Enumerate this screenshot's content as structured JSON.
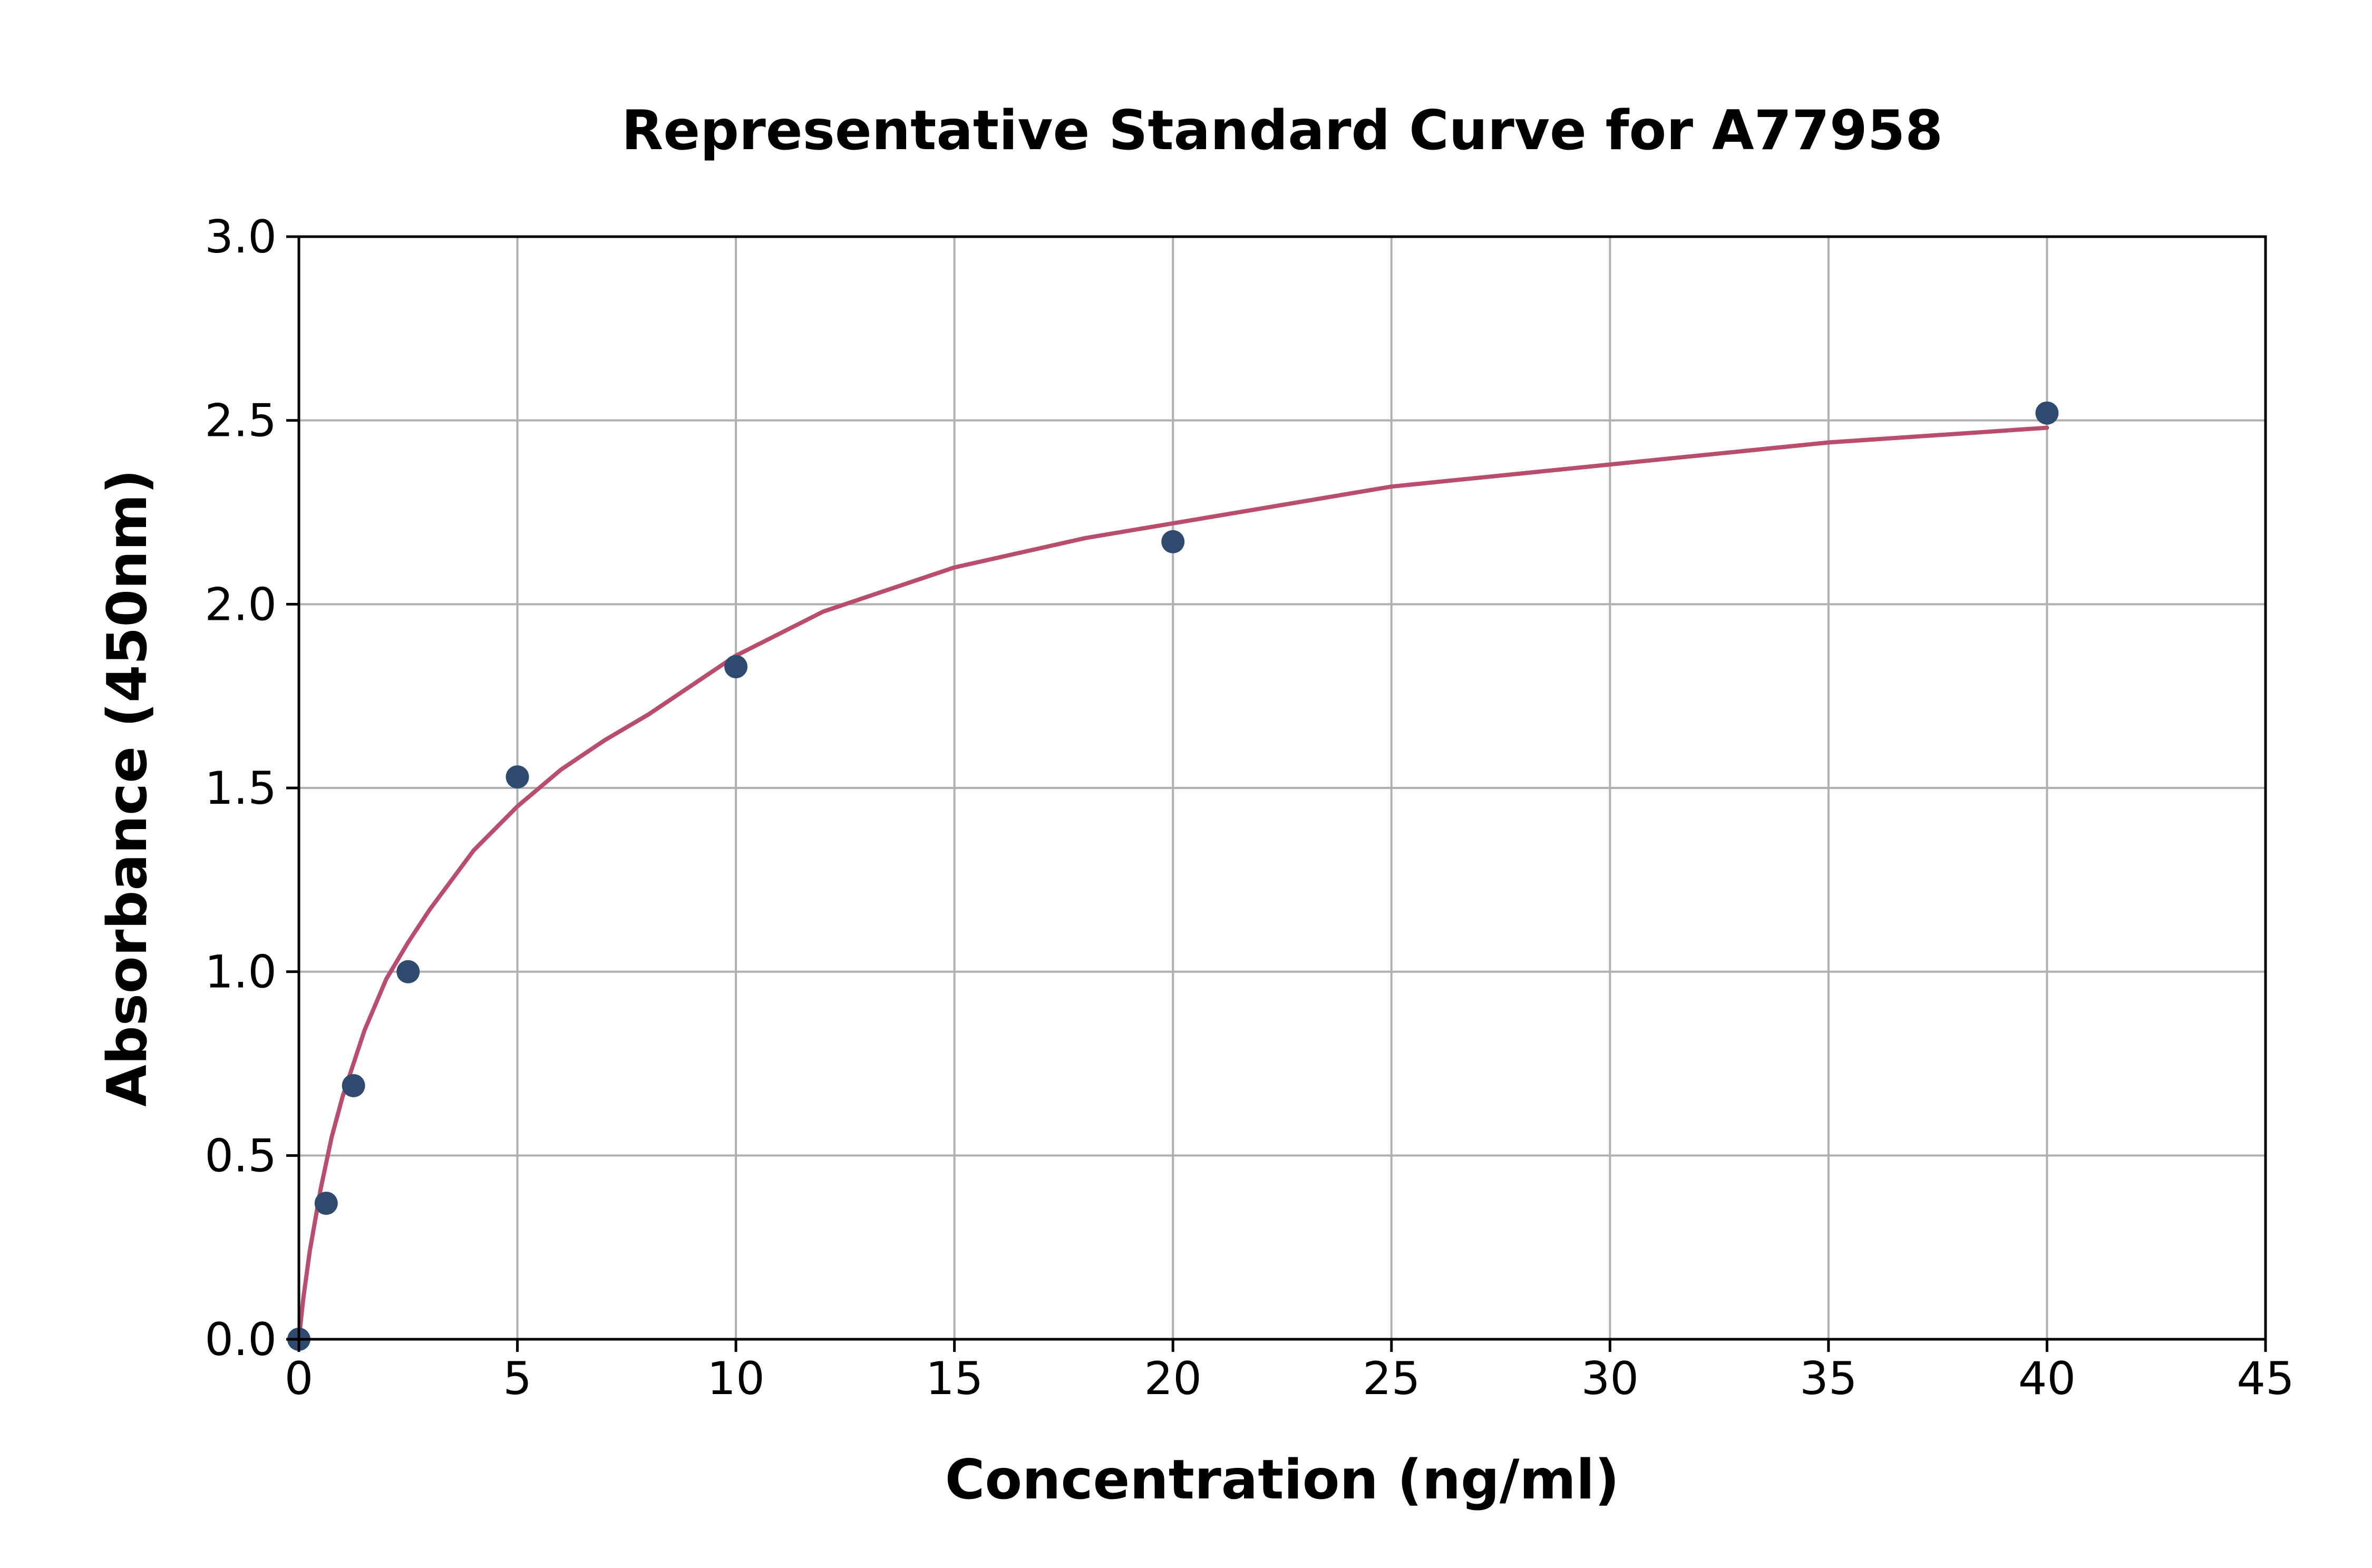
{
  "chart_data": {
    "type": "scatter",
    "title": "Representative Standard Curve for A77958",
    "xlabel": "Concentration (ng/ml)",
    "ylabel": "Absorbance (450nm)",
    "xlim": [
      0,
      45
    ],
    "ylim": [
      0,
      3.0
    ],
    "xticks": [
      "0",
      "5",
      "10",
      "15",
      "20",
      "25",
      "30",
      "35",
      "40",
      "45"
    ],
    "yticks": [
      "0.0",
      "0.5",
      "1.0",
      "1.5",
      "2.0",
      "2.5",
      "3.0"
    ],
    "grid": true,
    "legend": "none",
    "series": [
      {
        "kind": "points",
        "color": "#2e4a6e",
        "x": [
          0,
          0.625,
          1.25,
          2.5,
          5,
          10,
          20,
          40
        ],
        "y": [
          0.0,
          0.37,
          0.69,
          1.0,
          1.53,
          1.83,
          2.17,
          2.52
        ]
      },
      {
        "kind": "fit-curve",
        "color": "#b84d6e",
        "x": [
          0,
          0.1,
          0.25,
          0.5,
          0.75,
          1,
          1.5,
          2,
          2.5,
          3,
          4,
          5,
          6,
          7,
          8,
          10,
          12,
          15,
          18,
          20,
          25,
          30,
          35,
          40
        ],
        "y": [
          0.0,
          0.11,
          0.24,
          0.41,
          0.55,
          0.66,
          0.84,
          0.98,
          1.08,
          1.17,
          1.33,
          1.45,
          1.55,
          1.63,
          1.7,
          1.86,
          1.98,
          2.1,
          2.18,
          2.22,
          2.32,
          2.38,
          2.44,
          2.48
        ]
      }
    ]
  }
}
